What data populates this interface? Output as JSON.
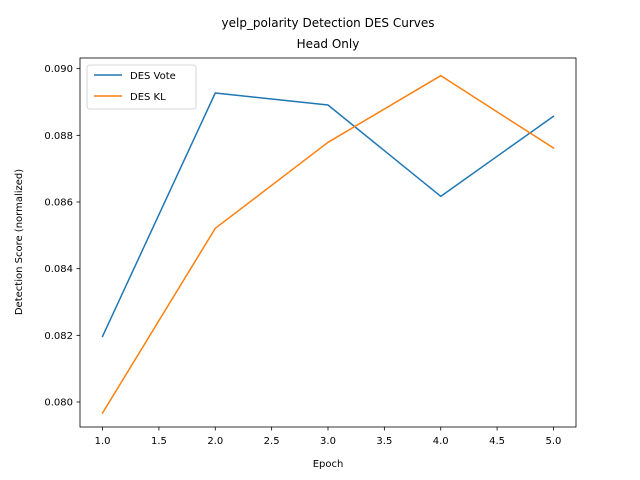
{
  "chart_data": {
    "type": "line",
    "title": "yelp_polarity Detection DES Curves",
    "subtitle": "Head Only",
    "xlabel": "Epoch",
    "ylabel": "Detection Score (normalized)",
    "x": [
      1,
      2,
      3,
      4,
      5
    ],
    "xlim": [
      0.8,
      5.2
    ],
    "ylim": [
      0.07925,
      0.09032
    ],
    "xticks": [
      "1.0",
      "1.5",
      "2.0",
      "2.5",
      "3.0",
      "3.5",
      "4.0",
      "4.5",
      "5.0"
    ],
    "yticks": [
      "0.080",
      "0.082",
      "0.084",
      "0.086",
      "0.088",
      "0.090"
    ],
    "grid": false,
    "legend_position": "top-left",
    "series": [
      {
        "name": "DES Vote",
        "color": "#1f77b4",
        "values": [
          0.08197,
          0.08927,
          0.08891,
          0.08617,
          0.08857
        ]
      },
      {
        "name": "DES KL",
        "color": "#ff7f0e",
        "values": [
          0.07967,
          0.08521,
          0.08779,
          0.08979,
          0.08762
        ]
      }
    ]
  }
}
